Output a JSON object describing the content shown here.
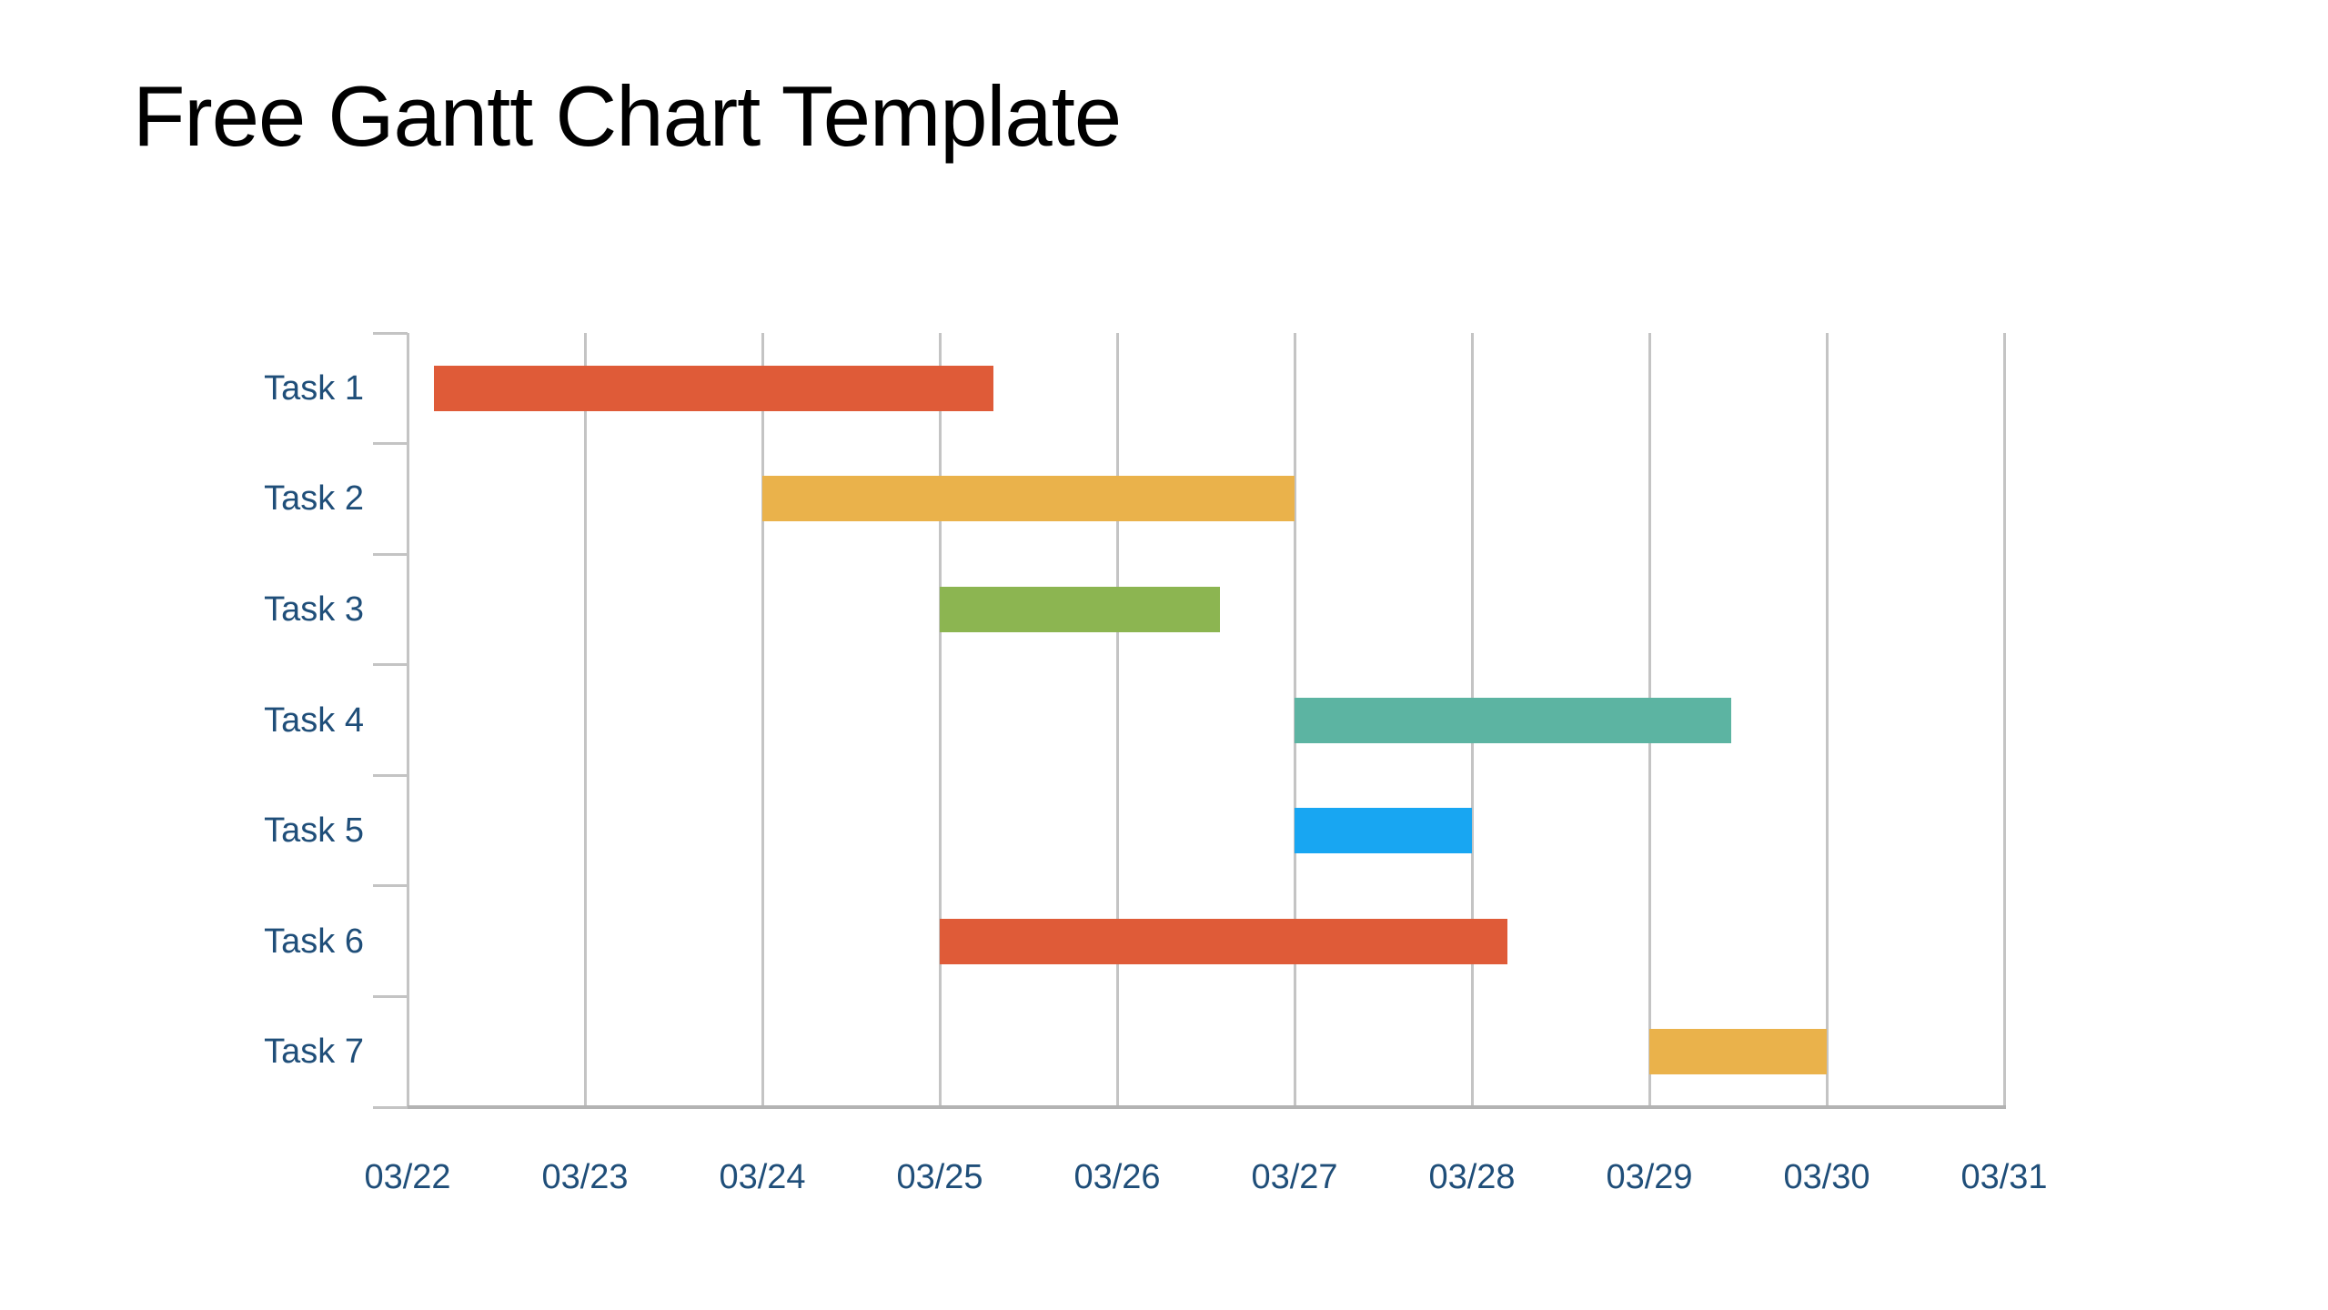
{
  "page": {
    "background": "#ffffff"
  },
  "chart_data": {
    "type": "bar",
    "subtype": "gantt",
    "title": "Free Gantt Chart Template",
    "title_color": "#000000",
    "categories": [
      "Task 1",
      "Task 2",
      "Task 3",
      "Task 4",
      "Task 5",
      "Task 6",
      "Task 7"
    ],
    "x_tick_labels": [
      "03/22",
      "03/23",
      "03/24",
      "03/25",
      "03/26",
      "03/27",
      "03/28",
      "03/29",
      "03/30",
      "03/31"
    ],
    "x_axis_range_days": [
      0,
      9
    ],
    "grid": "vertical-only",
    "legend": "none",
    "axis_label_color": "#1F4E79",
    "gridline_color": "#C4C4C4",
    "axis_line_color": "#B3B3B3",
    "tasks": [
      {
        "name": "Task 1",
        "start": "03/22",
        "end": "03/25",
        "start_day": 0.15,
        "end_day": 3.3,
        "color": "#DF5B38"
      },
      {
        "name": "Task 2",
        "start": "03/24",
        "end": "03/27",
        "start_day": 2.0,
        "end_day": 5.0,
        "color": "#EAB24B"
      },
      {
        "name": "Task 3",
        "start": "03/25",
        "end": "03/26",
        "start_day": 3.0,
        "end_day": 4.58,
        "color": "#8CB551"
      },
      {
        "name": "Task 4",
        "start": "03/27",
        "end": "03/29",
        "start_day": 5.0,
        "end_day": 7.46,
        "color": "#5CB4A2"
      },
      {
        "name": "Task 5",
        "start": "03/27",
        "end": "03/28",
        "start_day": 5.0,
        "end_day": 6.0,
        "color": "#18A6F2"
      },
      {
        "name": "Task 6",
        "start": "03/25",
        "end": "03/28",
        "start_day": 3.0,
        "end_day": 6.2,
        "color": "#DF5B38"
      },
      {
        "name": "Task 7",
        "start": "03/29",
        "end": "03/30",
        "start_day": 7.0,
        "end_day": 8.0,
        "color": "#EAB24B"
      }
    ]
  }
}
